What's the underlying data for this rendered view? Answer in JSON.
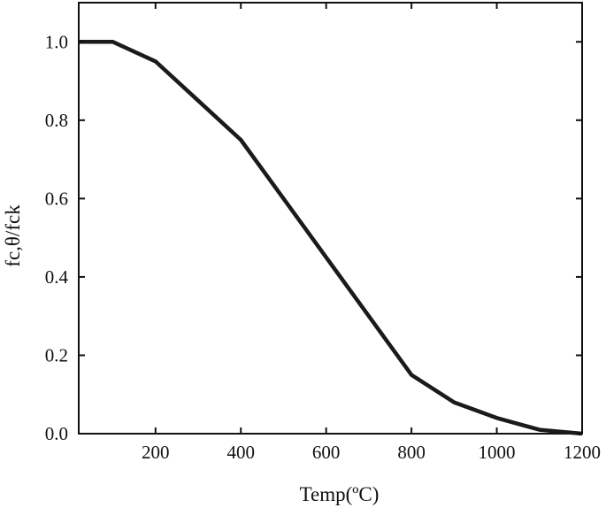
{
  "chart_data": {
    "type": "line",
    "title": "",
    "xlabel": "Temp(ºC)",
    "ylabel": "fc,θ/fck",
    "xlim": [
      20,
      1200
    ],
    "ylim": [
      0,
      1.1
    ],
    "x_ticks": [
      {
        "value": 200,
        "label": "200"
      },
      {
        "value": 400,
        "label": "400"
      },
      {
        "value": 600,
        "label": "600"
      },
      {
        "value": 800,
        "label": "800"
      },
      {
        "value": 1000,
        "label": "1000"
      },
      {
        "value": 1200,
        "label": "1200"
      }
    ],
    "y_ticks": [
      {
        "value": 0.0,
        "label": "0.0"
      },
      {
        "value": 0.2,
        "label": "0.2"
      },
      {
        "value": 0.4,
        "label": "0.4"
      },
      {
        "value": 0.6,
        "label": "0.6"
      },
      {
        "value": 0.8,
        "label": "0.8"
      },
      {
        "value": 1.0,
        "label": "1.0"
      }
    ],
    "grid": false,
    "legend": "none",
    "series": [
      {
        "color": "#1a1a1a",
        "x": [
          20,
          100,
          200,
          300,
          400,
          500,
          600,
          700,
          800,
          900,
          1000,
          1100,
          1200
        ],
        "y": [
          1.0,
          1.0,
          0.95,
          0.85,
          0.75,
          0.6,
          0.45,
          0.3,
          0.15,
          0.08,
          0.04,
          0.01,
          0.0
        ]
      }
    ]
  }
}
